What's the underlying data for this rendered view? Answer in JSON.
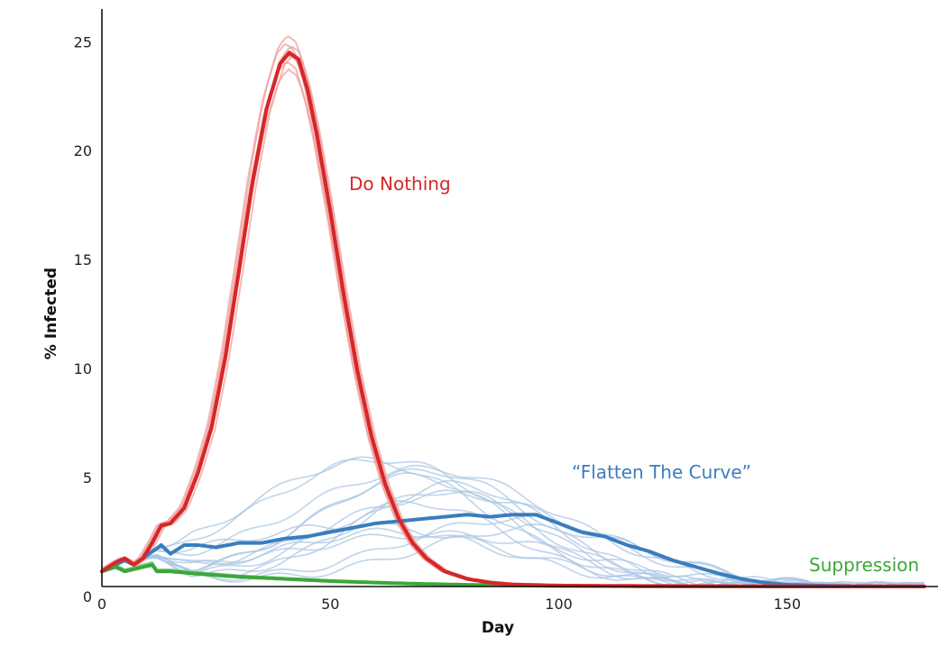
{
  "chart_data": {
    "type": "line",
    "xlabel": "Day",
    "ylabel": "% Infected",
    "xlim": [
      0,
      183
    ],
    "ylim": [
      0,
      26.5
    ],
    "x_ticks": [
      0,
      50,
      100,
      150
    ],
    "y_ticks": [
      5,
      10,
      15,
      20,
      25
    ],
    "y_zero_label": "0",
    "grid": false,
    "series": [
      {
        "name": "Do Nothing",
        "color": "#d62728",
        "x": [
          0,
          3,
          5,
          7,
          9,
          11,
          13,
          15,
          18,
          21,
          24,
          27,
          30,
          33,
          36,
          39,
          41,
          43,
          45,
          47,
          50,
          53,
          56,
          59,
          62,
          65,
          68,
          71,
          75,
          80,
          85,
          90,
          100,
          120,
          150,
          180
        ],
        "y": [
          0.7,
          1.1,
          1.3,
          1.0,
          1.3,
          2.0,
          2.8,
          2.9,
          3.6,
          5.2,
          7.3,
          10.5,
          14.5,
          18.6,
          21.9,
          24.0,
          24.5,
          24.2,
          22.8,
          20.8,
          17.2,
          13.3,
          9.8,
          6.9,
          4.7,
          3.1,
          2.0,
          1.3,
          0.7,
          0.35,
          0.18,
          0.09,
          0.04,
          0.02,
          0.01,
          0.01
        ]
      },
      {
        "name": "“Flatten The Curve”",
        "color": "#3a7dbe",
        "x": [
          0,
          3,
          5,
          7,
          9,
          11,
          13,
          15,
          18,
          21,
          25,
          30,
          35,
          40,
          45,
          50,
          55,
          60,
          65,
          70,
          75,
          80,
          85,
          90,
          95,
          100,
          105,
          110,
          115,
          120,
          125,
          130,
          135,
          140,
          145,
          150,
          160,
          170,
          180
        ],
        "y": [
          0.7,
          1.0,
          1.2,
          1.0,
          1.3,
          1.6,
          1.9,
          1.5,
          1.9,
          1.9,
          1.8,
          2.0,
          2.0,
          2.2,
          2.3,
          2.5,
          2.7,
          2.9,
          3.0,
          3.1,
          3.2,
          3.3,
          3.2,
          3.3,
          3.3,
          2.9,
          2.5,
          2.3,
          1.9,
          1.6,
          1.2,
          0.9,
          0.6,
          0.35,
          0.18,
          0.08,
          0.03,
          0.01,
          0.0
        ]
      },
      {
        "name": "Suppression",
        "color": "#3aa73a",
        "x": [
          0,
          3,
          5,
          7,
          9,
          11,
          12,
          15,
          20,
          30,
          40,
          50,
          60,
          70,
          80,
          90,
          100,
          120,
          150,
          180
        ],
        "y": [
          0.7,
          0.9,
          0.7,
          0.8,
          0.9,
          1.0,
          0.7,
          0.7,
          0.6,
          0.45,
          0.35,
          0.25,
          0.18,
          0.12,
          0.08,
          0.05,
          0.03,
          0.01,
          0.0,
          0.0
        ]
      }
    ]
  }
}
